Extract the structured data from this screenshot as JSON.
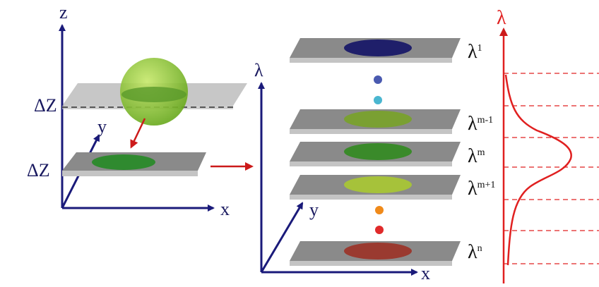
{
  "left_axes": {
    "z": "z",
    "y": "y",
    "x": "x"
  },
  "slices": [
    "ΔZ",
    "ΔZ"
  ],
  "right_axes": {
    "lambda": "λ",
    "y": "y",
    "x": "x"
  },
  "layers": [
    {
      "base": "λ",
      "sup": "1"
    },
    {
      "base": "λ",
      "sup": "m-1"
    },
    {
      "base": "λ",
      "sup": "m"
    },
    {
      "base": "λ",
      "sup": "m+1"
    },
    {
      "base": "λ",
      "sup": "n"
    }
  ],
  "spectrum_axis": "λ"
}
